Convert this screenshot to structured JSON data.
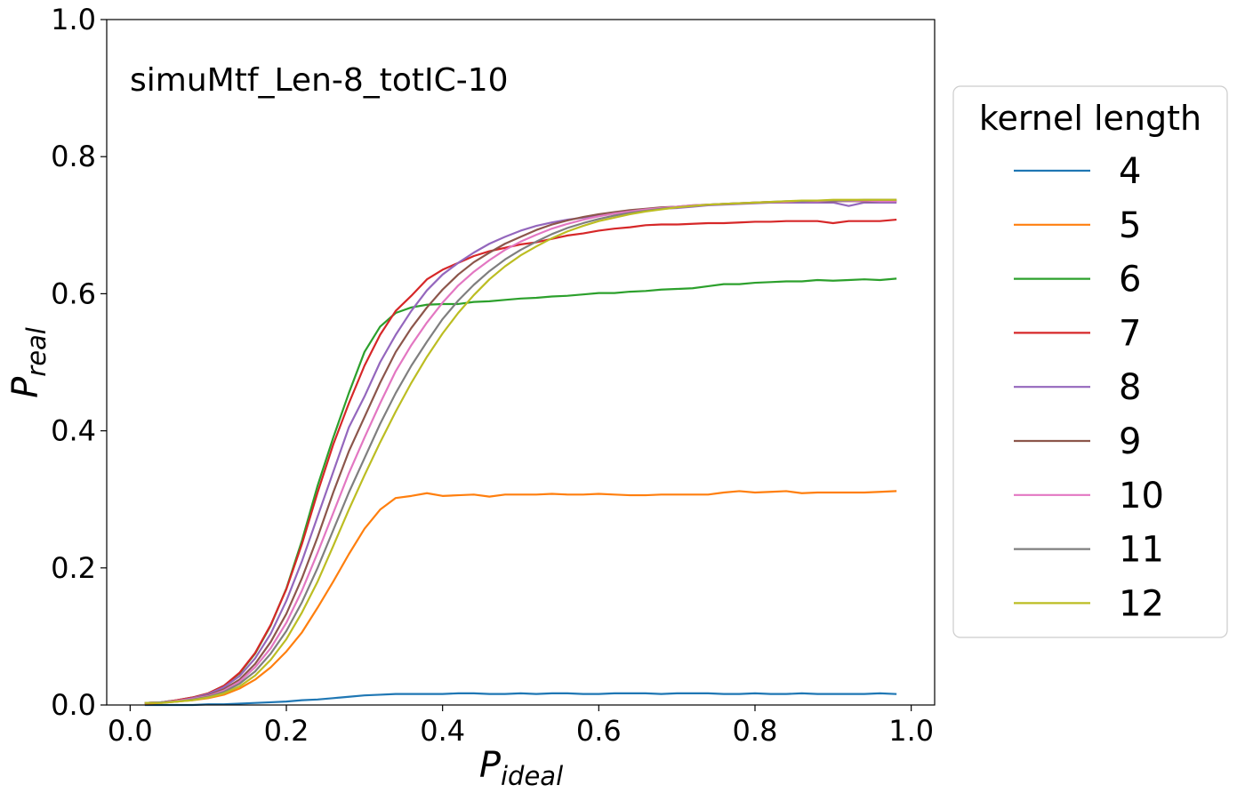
{
  "chart_data": {
    "type": "line",
    "title": "",
    "annotation": "simuMtf_Len-8_totIC-10",
    "xlabel": "P",
    "xlabel_sub": "ideal",
    "ylabel": "P",
    "ylabel_sub": "real",
    "xlim": [
      -0.03,
      1.03
    ],
    "ylim": [
      0.0,
      1.0
    ],
    "xticks": [
      0.0,
      0.2,
      0.4,
      0.6,
      0.8,
      1.0
    ],
    "xtick_labels": [
      "0.0",
      "0.2",
      "0.4",
      "0.6",
      "0.8",
      "1.0"
    ],
    "yticks": [
      0.0,
      0.2,
      0.4,
      0.6,
      0.8,
      1.0
    ],
    "ytick_labels": [
      "0.0",
      "0.2",
      "0.4",
      "0.6",
      "0.8",
      "1.0"
    ],
    "grid": false,
    "legend_title": "kernel length",
    "legend_position": "outside-right",
    "x": [
      0.02,
      0.04,
      0.06,
      0.08,
      0.1,
      0.12,
      0.14,
      0.16,
      0.18,
      0.2,
      0.22,
      0.24,
      0.26,
      0.28,
      0.3,
      0.32,
      0.34,
      0.36,
      0.38,
      0.4,
      0.42,
      0.44,
      0.46,
      0.48,
      0.5,
      0.52,
      0.54,
      0.56,
      0.58,
      0.6,
      0.62,
      0.64,
      0.66,
      0.68,
      0.7,
      0.72,
      0.74,
      0.76,
      0.78,
      0.8,
      0.82,
      0.84,
      0.86,
      0.88,
      0.9,
      0.92,
      0.94,
      0.96,
      0.98
    ],
    "series": [
      {
        "name": "4",
        "color": "#1f77b4",
        "values": [
          0.0,
          0.0,
          0.0,
          0.0,
          0.001,
          0.001,
          0.002,
          0.003,
          0.004,
          0.005,
          0.007,
          0.008,
          0.01,
          0.012,
          0.014,
          0.015,
          0.016,
          0.016,
          0.016,
          0.016,
          0.017,
          0.017,
          0.016,
          0.016,
          0.017,
          0.016,
          0.017,
          0.017,
          0.016,
          0.016,
          0.017,
          0.017,
          0.017,
          0.016,
          0.017,
          0.017,
          0.017,
          0.016,
          0.016,
          0.017,
          0.016,
          0.016,
          0.017,
          0.016,
          0.016,
          0.016,
          0.016,
          0.017,
          0.016
        ]
      },
      {
        "name": "5",
        "color": "#ff7f0e",
        "values": [
          0.002,
          0.003,
          0.005,
          0.007,
          0.01,
          0.015,
          0.024,
          0.037,
          0.055,
          0.078,
          0.106,
          0.142,
          0.18,
          0.22,
          0.257,
          0.285,
          0.302,
          0.305,
          0.309,
          0.305,
          0.306,
          0.307,
          0.304,
          0.307,
          0.307,
          0.307,
          0.308,
          0.307,
          0.307,
          0.308,
          0.307,
          0.306,
          0.306,
          0.307,
          0.307,
          0.307,
          0.307,
          0.31,
          0.312,
          0.31,
          0.311,
          0.312,
          0.309,
          0.31,
          0.31,
          0.31,
          0.31,
          0.311,
          0.312
        ]
      },
      {
        "name": "6",
        "color": "#2ca02c",
        "values": [
          0.003,
          0.004,
          0.007,
          0.011,
          0.017,
          0.028,
          0.046,
          0.075,
          0.116,
          0.17,
          0.24,
          0.32,
          0.39,
          0.455,
          0.515,
          0.552,
          0.572,
          0.58,
          0.584,
          0.585,
          0.585,
          0.588,
          0.589,
          0.591,
          0.593,
          0.594,
          0.596,
          0.597,
          0.599,
          0.601,
          0.601,
          0.603,
          0.604,
          0.606,
          0.607,
          0.608,
          0.611,
          0.614,
          0.614,
          0.616,
          0.617,
          0.618,
          0.618,
          0.62,
          0.619,
          0.62,
          0.621,
          0.62,
          0.622
        ]
      },
      {
        "name": "7",
        "color": "#d62728",
        "values": [
          0.003,
          0.004,
          0.007,
          0.011,
          0.017,
          0.028,
          0.047,
          0.076,
          0.117,
          0.169,
          0.235,
          0.31,
          0.38,
          0.44,
          0.495,
          0.54,
          0.575,
          0.597,
          0.621,
          0.635,
          0.645,
          0.655,
          0.662,
          0.667,
          0.672,
          0.675,
          0.68,
          0.685,
          0.688,
          0.692,
          0.695,
          0.697,
          0.7,
          0.701,
          0.701,
          0.702,
          0.703,
          0.703,
          0.704,
          0.705,
          0.705,
          0.706,
          0.706,
          0.706,
          0.703,
          0.706,
          0.706,
          0.706,
          0.708
        ]
      },
      {
        "name": "8",
        "color": "#9467bd",
        "values": [
          0.003,
          0.004,
          0.006,
          0.01,
          0.016,
          0.026,
          0.042,
          0.068,
          0.104,
          0.152,
          0.21,
          0.275,
          0.34,
          0.405,
          0.45,
          0.5,
          0.54,
          0.575,
          0.605,
          0.628,
          0.645,
          0.66,
          0.673,
          0.683,
          0.692,
          0.699,
          0.704,
          0.708,
          0.711,
          0.714,
          0.717,
          0.72,
          0.722,
          0.724,
          0.725,
          0.727,
          0.729,
          0.73,
          0.731,
          0.732,
          0.733,
          0.733,
          0.733,
          0.733,
          0.733,
          0.728,
          0.733,
          0.733,
          0.733
        ]
      },
      {
        "name": "9",
        "color": "#8c564b",
        "values": [
          0.003,
          0.004,
          0.006,
          0.009,
          0.014,
          0.023,
          0.037,
          0.06,
          0.092,
          0.133,
          0.185,
          0.245,
          0.31,
          0.37,
          0.42,
          0.47,
          0.515,
          0.55,
          0.58,
          0.606,
          0.628,
          0.646,
          0.66,
          0.673,
          0.683,
          0.693,
          0.701,
          0.707,
          0.712,
          0.716,
          0.719,
          0.722,
          0.724,
          0.726,
          0.727,
          0.729,
          0.73,
          0.731,
          0.732,
          0.733,
          0.734,
          0.734,
          0.735,
          0.735,
          0.735,
          0.735,
          0.735,
          0.735,
          0.735
        ]
      },
      {
        "name": "10",
        "color": "#e377c2",
        "values": [
          0.003,
          0.004,
          0.006,
          0.009,
          0.013,
          0.021,
          0.034,
          0.055,
          0.083,
          0.12,
          0.167,
          0.222,
          0.28,
          0.338,
          0.39,
          0.44,
          0.487,
          0.525,
          0.558,
          0.587,
          0.612,
          0.632,
          0.649,
          0.664,
          0.676,
          0.686,
          0.695,
          0.702,
          0.708,
          0.713,
          0.717,
          0.72,
          0.723,
          0.725,
          0.727,
          0.729,
          0.73,
          0.731,
          0.732,
          0.733,
          0.734,
          0.734,
          0.735,
          0.735,
          0.736,
          0.735,
          0.736,
          0.735,
          0.735
        ]
      },
      {
        "name": "11",
        "color": "#7f7f7f",
        "values": [
          0.003,
          0.004,
          0.005,
          0.008,
          0.012,
          0.019,
          0.031,
          0.049,
          0.075,
          0.108,
          0.15,
          0.2,
          0.255,
          0.31,
          0.36,
          0.41,
          0.455,
          0.495,
          0.53,
          0.563,
          0.59,
          0.613,
          0.633,
          0.65,
          0.664,
          0.676,
          0.687,
          0.696,
          0.703,
          0.709,
          0.714,
          0.718,
          0.721,
          0.724,
          0.726,
          0.728,
          0.73,
          0.731,
          0.732,
          0.733,
          0.734,
          0.735,
          0.735,
          0.736,
          0.736,
          0.736,
          0.737,
          0.737,
          0.737
        ]
      },
      {
        "name": "12",
        "color": "#bcbd22",
        "values": [
          0.003,
          0.003,
          0.005,
          0.007,
          0.011,
          0.017,
          0.027,
          0.043,
          0.066,
          0.096,
          0.135,
          0.18,
          0.232,
          0.285,
          0.335,
          0.383,
          0.428,
          0.47,
          0.508,
          0.542,
          0.572,
          0.598,
          0.621,
          0.64,
          0.656,
          0.669,
          0.681,
          0.691,
          0.699,
          0.706,
          0.711,
          0.716,
          0.72,
          0.723,
          0.726,
          0.728,
          0.73,
          0.731,
          0.732,
          0.733,
          0.734,
          0.735,
          0.736,
          0.736,
          0.737,
          0.737,
          0.737,
          0.737,
          0.737
        ]
      }
    ]
  }
}
